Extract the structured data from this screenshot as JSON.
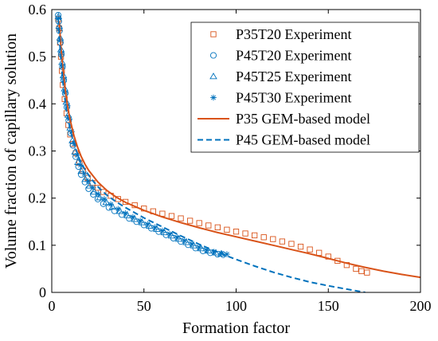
{
  "chart_data": {
    "type": "scatter",
    "xlabel": "Formation factor",
    "ylabel": "Volume fraction of capillary solution",
    "xlim": [
      0,
      200
    ],
    "ylim": [
      0,
      0.6
    ],
    "x_ticks": [
      "0",
      "50",
      "100",
      "150",
      "200"
    ],
    "y_ticks": [
      "0",
      "0.1",
      "0.2",
      "0.3",
      "0.4",
      "0.5",
      "0.6"
    ],
    "grid": false,
    "legend_position": "top-right",
    "colors": {
      "orange": "#d95319",
      "blue": "#0072bd"
    },
    "series": [
      {
        "name": "P35T20 Experiment",
        "kind": "marker",
        "marker": "square",
        "color": "#d95319",
        "points": [
          [
            3.5,
            0.58
          ],
          [
            4.0,
            0.56
          ],
          [
            4.5,
            0.53
          ],
          [
            5.0,
            0.5
          ],
          [
            5.5,
            0.47
          ],
          [
            6.0,
            0.44
          ],
          [
            7.0,
            0.41
          ],
          [
            8.0,
            0.38
          ],
          [
            9.0,
            0.355
          ],
          [
            10.0,
            0.335
          ],
          [
            11.5,
            0.315
          ],
          [
            13.0,
            0.295
          ],
          [
            15.0,
            0.275
          ],
          [
            17.0,
            0.258
          ],
          [
            19.5,
            0.243
          ],
          [
            22.0,
            0.232
          ],
          [
            25.0,
            0.222
          ],
          [
            28.0,
            0.213
          ],
          [
            32.0,
            0.205
          ],
          [
            36.0,
            0.198
          ],
          [
            40.0,
            0.192
          ],
          [
            45.0,
            0.185
          ],
          [
            50.0,
            0.178
          ],
          [
            55.0,
            0.172
          ],
          [
            60.0,
            0.167
          ],
          [
            65.0,
            0.162
          ],
          [
            70.0,
            0.157
          ],
          [
            75.0,
            0.152
          ],
          [
            80.0,
            0.147
          ],
          [
            85.0,
            0.142
          ],
          [
            90.0,
            0.138
          ],
          [
            95.0,
            0.133
          ],
          [
            100.0,
            0.129
          ],
          [
            105.0,
            0.125
          ],
          [
            110.0,
            0.121
          ],
          [
            115.0,
            0.117
          ],
          [
            120.0,
            0.113
          ],
          [
            125.0,
            0.108
          ],
          [
            130.0,
            0.103
          ],
          [
            135.0,
            0.097
          ],
          [
            140.0,
            0.091
          ],
          [
            145.0,
            0.084
          ],
          [
            150.0,
            0.076
          ],
          [
            155.0,
            0.067
          ],
          [
            160.0,
            0.058
          ],
          [
            165.0,
            0.05
          ],
          [
            168.0,
            0.045
          ],
          [
            171.0,
            0.042
          ]
        ]
      },
      {
        "name": "P45T20 Experiment",
        "kind": "marker",
        "marker": "circle",
        "color": "#0072bd",
        "points": [
          [
            3.5,
            0.588
          ],
          [
            3.8,
            0.575
          ],
          [
            4.2,
            0.555
          ],
          [
            4.7,
            0.53
          ],
          [
            5.2,
            0.505
          ],
          [
            5.8,
            0.478
          ],
          [
            6.5,
            0.45
          ],
          [
            7.3,
            0.422
          ],
          [
            8.2,
            0.393
          ],
          [
            9.2,
            0.365
          ],
          [
            10.3,
            0.338
          ],
          [
            11.5,
            0.312
          ],
          [
            13.0,
            0.288
          ],
          [
            14.5,
            0.267
          ],
          [
            16.0,
            0.25
          ],
          [
            18.0,
            0.234
          ],
          [
            20.0,
            0.22
          ],
          [
            22.5,
            0.208
          ],
          [
            25.0,
            0.198
          ],
          [
            28.0,
            0.188
          ],
          [
            31.0,
            0.18
          ],
          [
            34.0,
            0.173
          ],
          [
            38.0,
            0.165
          ],
          [
            42.0,
            0.157
          ],
          [
            46.0,
            0.15
          ],
          [
            50.0,
            0.143
          ],
          [
            54.0,
            0.136
          ],
          [
            58.0,
            0.129
          ],
          [
            62.0,
            0.122
          ],
          [
            66.0,
            0.115
          ],
          [
            70.0,
            0.108
          ],
          [
            74.0,
            0.101
          ],
          [
            78.0,
            0.094
          ],
          [
            82.0,
            0.088
          ],
          [
            86.0,
            0.084
          ],
          [
            90.0,
            0.081
          ],
          [
            93.0,
            0.08
          ]
        ]
      },
      {
        "name": "P45T25 Experiment",
        "kind": "marker",
        "marker": "triangle",
        "color": "#0072bd",
        "points": [
          [
            3.6,
            0.585
          ],
          [
            4.0,
            0.565
          ],
          [
            4.5,
            0.54
          ],
          [
            5.0,
            0.515
          ],
          [
            5.6,
            0.488
          ],
          [
            6.3,
            0.46
          ],
          [
            7.0,
            0.432
          ],
          [
            7.9,
            0.404
          ],
          [
            8.9,
            0.376
          ],
          [
            10.0,
            0.349
          ],
          [
            11.2,
            0.322
          ],
          [
            12.6,
            0.298
          ],
          [
            14.2,
            0.276
          ],
          [
            16.0,
            0.257
          ],
          [
            18.2,
            0.24
          ],
          [
            20.5,
            0.226
          ],
          [
            23.0,
            0.213
          ],
          [
            26.0,
            0.201
          ],
          [
            29.5,
            0.191
          ],
          [
            33.0,
            0.181
          ],
          [
            37.0,
            0.172
          ],
          [
            41.0,
            0.163
          ],
          [
            45.0,
            0.155
          ],
          [
            49.0,
            0.148
          ],
          [
            53.0,
            0.141
          ],
          [
            57.0,
            0.134
          ],
          [
            61.0,
            0.127
          ],
          [
            65.0,
            0.12
          ],
          [
            69.0,
            0.113
          ],
          [
            73.0,
            0.106
          ],
          [
            77.0,
            0.099
          ],
          [
            81.0,
            0.093
          ],
          [
            85.0,
            0.088
          ],
          [
            89.0,
            0.084
          ],
          [
            92.0,
            0.082
          ]
        ]
      },
      {
        "name": "P45T30 Experiment",
        "kind": "marker",
        "marker": "star",
        "color": "#0072bd",
        "points": [
          [
            3.7,
            0.582
          ],
          [
            4.1,
            0.56
          ],
          [
            4.6,
            0.535
          ],
          [
            5.2,
            0.508
          ],
          [
            5.9,
            0.48
          ],
          [
            6.6,
            0.452
          ],
          [
            7.5,
            0.424
          ],
          [
            8.5,
            0.396
          ],
          [
            9.6,
            0.368
          ],
          [
            10.8,
            0.341
          ],
          [
            12.2,
            0.315
          ],
          [
            13.8,
            0.291
          ],
          [
            15.6,
            0.27
          ],
          [
            17.6,
            0.252
          ],
          [
            19.8,
            0.236
          ],
          [
            22.3,
            0.222
          ],
          [
            25.2,
            0.209
          ],
          [
            28.5,
            0.198
          ],
          [
            32.0,
            0.187
          ],
          [
            36.0,
            0.177
          ],
          [
            40.0,
            0.168
          ],
          [
            44.0,
            0.16
          ],
          [
            48.0,
            0.152
          ],
          [
            52.0,
            0.145
          ],
          [
            56.0,
            0.138
          ],
          [
            60.0,
            0.131
          ],
          [
            64.0,
            0.124
          ],
          [
            68.0,
            0.117
          ],
          [
            72.0,
            0.11
          ],
          [
            76.0,
            0.103
          ],
          [
            80.0,
            0.096
          ],
          [
            84.0,
            0.09
          ],
          [
            88.0,
            0.086
          ],
          [
            92.0,
            0.083
          ],
          [
            95.0,
            0.081
          ]
        ]
      },
      {
        "name": "P35 GEM-based model",
        "kind": "line",
        "dash": "solid",
        "color": "#d95319",
        "points": [
          [
            4.0,
            0.575
          ],
          [
            5.0,
            0.52
          ],
          [
            6.0,
            0.475
          ],
          [
            7.0,
            0.44
          ],
          [
            8.0,
            0.41
          ],
          [
            9.0,
            0.385
          ],
          [
            10.0,
            0.365
          ],
          [
            12.0,
            0.333
          ],
          [
            14.0,
            0.308
          ],
          [
            16.0,
            0.288
          ],
          [
            18.0,
            0.272
          ],
          [
            20.0,
            0.259
          ],
          [
            25.0,
            0.234
          ],
          [
            30.0,
            0.216
          ],
          [
            35.0,
            0.202
          ],
          [
            40.0,
            0.191
          ],
          [
            50.0,
            0.174
          ],
          [
            60.0,
            0.16
          ],
          [
            70.0,
            0.148
          ],
          [
            80.0,
            0.137
          ],
          [
            90.0,
            0.127
          ],
          [
            100.0,
            0.118
          ],
          [
            110.0,
            0.109
          ],
          [
            120.0,
            0.1
          ],
          [
            130.0,
            0.091
          ],
          [
            140.0,
            0.082
          ],
          [
            150.0,
            0.072
          ],
          [
            160.0,
            0.062
          ],
          [
            170.0,
            0.053
          ],
          [
            180.0,
            0.045
          ],
          [
            190.0,
            0.038
          ],
          [
            200.0,
            0.032
          ]
        ]
      },
      {
        "name": "P45 GEM-based model",
        "kind": "line",
        "dash": "dashed",
        "color": "#0072bd",
        "points": [
          [
            3.5,
            0.58
          ],
          [
            4.5,
            0.52
          ],
          [
            5.5,
            0.47
          ],
          [
            6.5,
            0.43
          ],
          [
            8.0,
            0.385
          ],
          [
            10.0,
            0.345
          ],
          [
            12.0,
            0.315
          ],
          [
            15.0,
            0.283
          ],
          [
            18.0,
            0.26
          ],
          [
            22.0,
            0.238
          ],
          [
            26.0,
            0.22
          ],
          [
            30.0,
            0.206
          ],
          [
            35.0,
            0.192
          ],
          [
            40.0,
            0.18
          ],
          [
            50.0,
            0.158
          ],
          [
            60.0,
            0.139
          ],
          [
            70.0,
            0.12
          ],
          [
            80.0,
            0.102
          ],
          [
            90.0,
            0.085
          ],
          [
            100.0,
            0.07
          ],
          [
            110.0,
            0.056
          ],
          [
            120.0,
            0.043
          ],
          [
            130.0,
            0.032
          ],
          [
            140.0,
            0.022
          ],
          [
            150.0,
            0.014
          ],
          [
            160.0,
            0.007
          ],
          [
            170.0,
            0.0
          ]
        ]
      }
    ]
  }
}
